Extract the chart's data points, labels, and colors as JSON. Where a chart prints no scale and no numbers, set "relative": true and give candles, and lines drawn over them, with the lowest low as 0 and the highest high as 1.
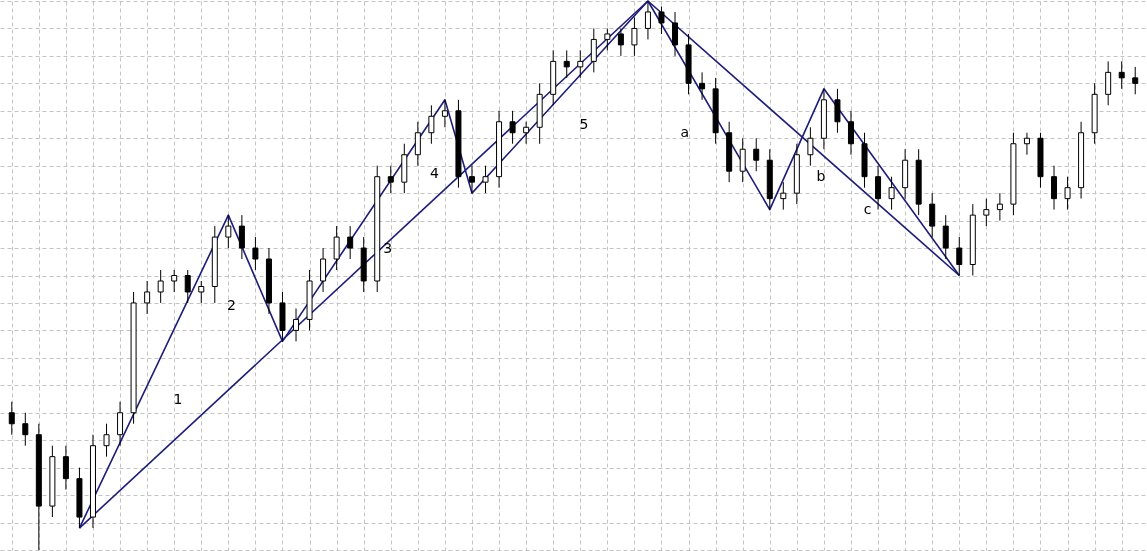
{
  "chart_data": {
    "type": "candlestick",
    "relative": true,
    "tick_labels": false,
    "grid": true,
    "color": "#000000",
    "categories": [
      null,
      null,
      null,
      null,
      null,
      null,
      null,
      null,
      null,
      null,
      null,
      null,
      null,
      null,
      null,
      null,
      null,
      null,
      null,
      null,
      null,
      null,
      null,
      null,
      null,
      null,
      null,
      null,
      null,
      null,
      null,
      null,
      null,
      null,
      null,
      null,
      null,
      null,
      null,
      null,
      null,
      null,
      null,
      null,
      null,
      null,
      null,
      null,
      null,
      null,
      null,
      null,
      null,
      null,
      null,
      null,
      null,
      null,
      null,
      null,
      null,
      null,
      null,
      null,
      null,
      null,
      null,
      null,
      null,
      null,
      null,
      null,
      null,
      null,
      null,
      null,
      null,
      null,
      null,
      null,
      null,
      null,
      null,
      null
    ],
    "ohlc": [
      [
        0.25,
        0.27,
        0.21,
        0.23
      ],
      [
        0.23,
        0.25,
        0.19,
        0.21
      ],
      [
        0.21,
        0.23,
        0,
        0.08
      ],
      [
        0.08,
        0.19,
        0.06,
        0.17
      ],
      [
        0.17,
        0.19,
        0.11,
        0.13
      ],
      [
        0.13,
        0.15,
        0.04,
        0.06
      ],
      [
        0.06,
        0.21,
        0.04,
        0.19
      ],
      [
        0.19,
        0.23,
        0.17,
        0.21
      ],
      [
        0.21,
        0.27,
        0.19,
        0.25
      ],
      [
        0.25,
        0.47,
        0.23,
        0.45
      ],
      [
        0.45,
        0.49,
        0.43,
        0.47
      ],
      [
        0.47,
        0.51,
        0.45,
        0.49
      ],
      [
        0.49,
        0.51,
        0.47,
        0.5
      ],
      [
        0.5,
        0.51,
        0.45,
        0.47
      ],
      [
        0.47,
        0.49,
        0.45,
        0.48
      ],
      [
        0.48,
        0.59,
        0.45,
        0.57
      ],
      [
        0.57,
        0.61,
        0.55,
        0.59
      ],
      [
        0.59,
        0.61,
        0.53,
        0.55
      ],
      [
        0.55,
        0.57,
        0.51,
        0.53
      ],
      [
        0.53,
        0.55,
        0.43,
        0.45
      ],
      [
        0.45,
        0.47,
        0.38,
        0.4
      ],
      [
        0.4,
        0.44,
        0.38,
        0.42
      ],
      [
        0.42,
        0.51,
        0.4,
        0.49
      ],
      [
        0.49,
        0.55,
        0.47,
        0.53
      ],
      [
        0.53,
        0.59,
        0.51,
        0.57
      ],
      [
        0.57,
        0.59,
        0.53,
        0.55
      ],
      [
        0.55,
        0.57,
        0.47,
        0.49
      ],
      [
        0.49,
        0.7,
        0.47,
        0.68
      ],
      [
        0.68,
        0.7,
        0.65,
        0.67
      ],
      [
        0.67,
        0.74,
        0.65,
        0.72
      ],
      [
        0.72,
        0.78,
        0.7,
        0.76
      ],
      [
        0.76,
        0.81,
        0.74,
        0.79
      ],
      [
        0.79,
        0.82,
        0.77,
        0.8
      ],
      [
        0.8,
        0.82,
        0.66,
        0.68
      ],
      [
        0.68,
        0.7,
        0.65,
        0.67
      ],
      [
        0.67,
        0.7,
        0.65,
        0.68
      ],
      [
        0.68,
        0.8,
        0.66,
        0.78
      ],
      [
        0.78,
        0.8,
        0.74,
        0.76
      ],
      [
        0.76,
        0.78,
        0.74,
        0.77
      ],
      [
        0.77,
        0.85,
        0.74,
        0.83
      ],
      [
        0.83,
        0.91,
        0.81,
        0.89
      ],
      [
        0.89,
        0.91,
        0.86,
        0.88
      ],
      [
        0.88,
        0.91,
        0.86,
        0.89
      ],
      [
        0.89,
        0.95,
        0.87,
        0.93
      ],
      [
        0.93,
        0.95,
        0.91,
        0.94
      ],
      [
        0.94,
        0.95,
        0.9,
        0.92
      ],
      [
        0.92,
        0.97,
        0.9,
        0.95
      ],
      [
        0.95,
        1.0,
        0.93,
        0.98
      ],
      [
        0.98,
        0.99,
        0.94,
        0.96
      ],
      [
        0.96,
        0.98,
        0.9,
        0.92
      ],
      [
        0.92,
        0.94,
        0.83,
        0.85
      ],
      [
        0.85,
        0.87,
        0.82,
        0.84
      ],
      [
        0.84,
        0.86,
        0.74,
        0.76
      ],
      [
        0.76,
        0.78,
        0.67,
        0.69
      ],
      [
        0.69,
        0.75,
        0.67,
        0.73
      ],
      [
        0.73,
        0.75,
        0.69,
        0.71
      ],
      [
        0.71,
        0.73,
        0.62,
        0.64
      ],
      [
        0.64,
        0.67,
        0.62,
        0.65
      ],
      [
        0.65,
        0.74,
        0.63,
        0.72
      ],
      [
        0.72,
        0.77,
        0.7,
        0.75
      ],
      [
        0.75,
        0.84,
        0.73,
        0.82
      ],
      [
        0.82,
        0.84,
        0.76,
        0.78
      ],
      [
        0.78,
        0.8,
        0.72,
        0.74
      ],
      [
        0.74,
        0.76,
        0.66,
        0.68
      ],
      [
        0.68,
        0.7,
        0.62,
        0.64
      ],
      [
        0.64,
        0.68,
        0.62,
        0.66
      ],
      [
        0.66,
        0.73,
        0.64,
        0.71
      ],
      [
        0.71,
        0.73,
        0.61,
        0.63
      ],
      [
        0.63,
        0.65,
        0.57,
        0.59
      ],
      [
        0.59,
        0.61,
        0.53,
        0.55
      ],
      [
        0.55,
        0.57,
        0.5,
        0.52
      ],
      [
        0.52,
        0.63,
        0.5,
        0.61
      ],
      [
        0.61,
        0.64,
        0.59,
        0.62
      ],
      [
        0.62,
        0.65,
        0.6,
        0.63
      ],
      [
        0.63,
        0.76,
        0.61,
        0.74
      ],
      [
        0.74,
        0.76,
        0.72,
        0.75
      ],
      [
        0.75,
        0.76,
        0.66,
        0.68
      ],
      [
        0.68,
        0.7,
        0.62,
        0.64
      ],
      [
        0.64,
        0.68,
        0.62,
        0.66
      ],
      [
        0.66,
        0.78,
        0.64,
        0.76
      ],
      [
        0.76,
        0.85,
        0.74,
        0.83
      ],
      [
        0.83,
        0.89,
        0.81,
        0.87
      ],
      [
        0.87,
        0.89,
        0.84,
        0.86
      ],
      [
        0.86,
        0.88,
        0.83,
        0.85
      ]
    ],
    "series": [
      {
        "type": "line",
        "color": "#1c1c7a",
        "values": [
          null,
          null,
          null,
          null,
          null,
          0.04,
          null,
          null,
          null,
          null,
          null,
          null,
          null,
          null,
          null,
          null,
          0.61,
          null,
          null,
          null,
          0.38,
          null,
          null,
          null,
          null,
          null,
          null,
          null,
          null,
          null,
          null,
          null,
          0.82,
          null,
          0.65,
          null,
          null,
          null,
          null,
          null,
          null,
          null,
          null,
          null,
          null,
          null,
          null,
          1.0,
          null,
          null,
          null,
          null,
          null,
          null,
          null,
          null,
          0.62,
          null,
          null,
          null,
          0.84,
          null,
          null,
          null,
          null,
          null,
          null,
          null,
          null,
          null,
          0.5,
          null,
          null,
          null,
          null,
          null,
          null,
          null,
          null,
          null,
          null,
          null,
          null,
          null
        ]
      },
      {
        "type": "line",
        "color": "#1c1c7a",
        "values": [
          null,
          null,
          null,
          null,
          null,
          0.04,
          null,
          null,
          null,
          null,
          null,
          null,
          null,
          null,
          null,
          null,
          null,
          null,
          null,
          null,
          null,
          null,
          null,
          null,
          null,
          null,
          null,
          null,
          null,
          null,
          null,
          null,
          null,
          null,
          null,
          null,
          null,
          null,
          null,
          null,
          null,
          null,
          null,
          null,
          null,
          null,
          null,
          1.0,
          null,
          null,
          null,
          null,
          null,
          null,
          null,
          null,
          null,
          null,
          null,
          null,
          null,
          null,
          null,
          null,
          null,
          null,
          null,
          null,
          null,
          null,
          null,
          null,
          null,
          null,
          null,
          null,
          null,
          null,
          null,
          null,
          null,
          null,
          null,
          null
        ]
      },
      {
        "type": "line",
        "color": "#1c1c7a",
        "values": [
          null,
          null,
          null,
          null,
          null,
          null,
          null,
          null,
          null,
          null,
          null,
          null,
          null,
          null,
          null,
          null,
          null,
          null,
          null,
          null,
          null,
          null,
          null,
          null,
          null,
          null,
          null,
          null,
          null,
          null,
          null,
          null,
          null,
          null,
          null,
          null,
          null,
          null,
          null,
          null,
          null,
          null,
          null,
          null,
          null,
          null,
          null,
          1.0,
          null,
          null,
          null,
          null,
          null,
          null,
          null,
          null,
          null,
          null,
          null,
          null,
          null,
          null,
          null,
          null,
          null,
          null,
          null,
          null,
          null,
          null,
          0.5,
          null,
          null,
          null,
          null,
          null,
          null,
          null,
          null,
          null,
          null,
          null,
          null,
          null
        ]
      }
    ],
    "annotations": [
      "1",
      "2",
      "3",
      "4",
      "5",
      "a",
      "b",
      "c"
    ]
  }
}
